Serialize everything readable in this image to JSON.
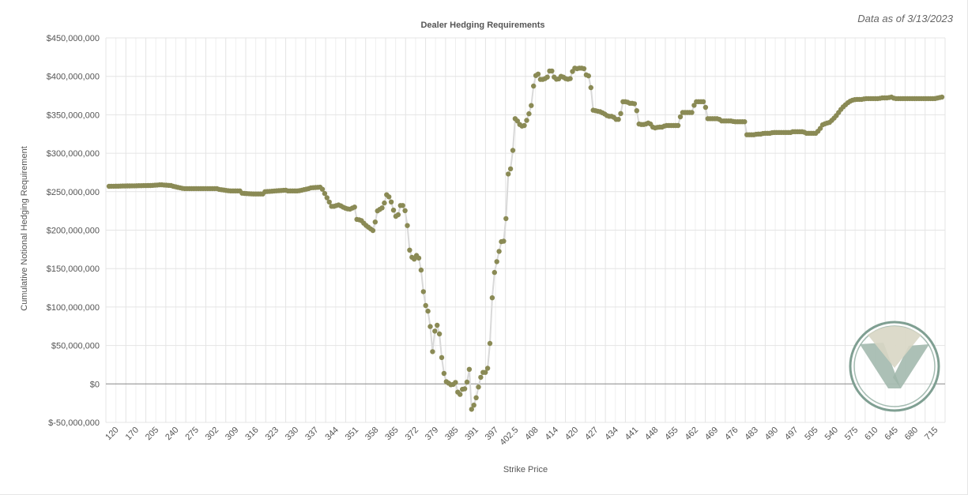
{
  "data_as_of": "Data as of 3/13/2023",
  "colors": {
    "marker": "#8a8a55",
    "line": "#d9d9d9",
    "grid": "#e4e4e4",
    "zero_line": "#888888",
    "logo_outer": "#7f9f92",
    "logo_light": "#d8d6c4",
    "logo_dark": "#9db5a9"
  },
  "logo": {
    "icon": "checkmark-v-logo-icon"
  },
  "chart_data": {
    "type": "line",
    "title": "Dealer Hedging Requirements",
    "xlabel": "Strike Price",
    "ylabel": "Cumulative Notional Hedging Requirement",
    "ylim": [
      -50000000,
      450000000
    ],
    "y_ticks": [
      {
        "value": 450000000,
        "label": "$450,000,000"
      },
      {
        "value": 400000000,
        "label": "$400,000,000"
      },
      {
        "value": 350000000,
        "label": "$350,000,000"
      },
      {
        "value": 300000000,
        "label": "$300,000,000"
      },
      {
        "value": 250000000,
        "label": "$250,000,000"
      },
      {
        "value": 200000000,
        "label": "$200,000,000"
      },
      {
        "value": 150000000,
        "label": "$150,000,000"
      },
      {
        "value": 100000000,
        "label": "$100,000,000"
      },
      {
        "value": 50000000,
        "label": "$50,000,000"
      },
      {
        "value": 0,
        "label": "$0"
      },
      {
        "value": -50000000,
        "label": "$-50,000,000"
      }
    ],
    "x_tick_labels": [
      "120",
      "170",
      "205",
      "240",
      "275",
      "302",
      "309",
      "316",
      "323",
      "330",
      "337",
      "344",
      "351",
      "358",
      "365",
      "372",
      "379",
      "385",
      "391",
      "397",
      "402.5",
      "408",
      "414",
      "420",
      "427",
      "434",
      "441",
      "448",
      "455",
      "462",
      "469",
      "476",
      "483",
      "490",
      "497",
      "505",
      "540",
      "575",
      "610",
      "645",
      "680",
      "715"
    ],
    "grid": true,
    "legend": "none",
    "segments": [
      {
        "count": 18,
        "values": [
          257000000,
          258000000
        ]
      },
      {
        "count": 10,
        "values": [
          258000000,
          259000000,
          258000000
        ]
      },
      {
        "count": 10,
        "values": [
          257000000,
          254000000,
          254000000
        ]
      },
      {
        "count": 10,
        "values": [
          254000000,
          254000000,
          254000000
        ]
      },
      {
        "count": 10,
        "values": [
          253000000,
          251000000,
          251000000
        ]
      },
      {
        "count": 10,
        "values": [
          248000000,
          247000000,
          247000000
        ]
      },
      {
        "count": 10,
        "values": [
          250000000,
          251000000,
          252000000
        ]
      },
      {
        "count": 10,
        "values": [
          251000000,
          251000000,
          254000000
        ]
      },
      {
        "count": 10,
        "values": [
          255000000,
          256000000,
          231000000
        ]
      },
      {
        "count": 10,
        "values": [
          231000000,
          233000000,
          229000000,
          227000000,
          230000000
        ]
      },
      {
        "count": 10,
        "values": [
          214000000,
          213000000,
          207000000,
          203000000,
          199000000,
          225000000
        ]
      },
      {
        "count": 10,
        "values": [
          227000000,
          230000000,
          246000000,
          242000000,
          226000000,
          214000000,
          232000000
        ]
      },
      {
        "count": 10,
        "values": [
          232000000,
          222000000,
          174000000,
          160000000,
          167000000,
          162000000,
          120000000
        ]
      },
      {
        "count": 10,
        "values": [
          102000000,
          91000000,
          42000000,
          82000000,
          65000000,
          19000000,
          3000000
        ]
      },
      {
        "count": 10,
        "values": [
          1000000,
          -2000000,
          2000000,
          -17000000,
          -7000000,
          -6000000,
          19000000
        ]
      },
      {
        "count": 10,
        "values": [
          -33000000,
          -25000000,
          -4000000,
          15000000,
          15000000,
          23000000,
          112000000
        ]
      },
      {
        "count": 10,
        "values": [
          145000000,
          166000000,
          185000000,
          186000000,
          273000000,
          283000000,
          345000000
        ]
      },
      {
        "count": 10,
        "values": [
          342000000,
          335000000,
          336000000,
          346000000,
          362000000,
          400000000,
          403000000
        ]
      },
      {
        "count": 10,
        "values": [
          396000000,
          396000000,
          399000000,
          411000000,
          399000000,
          395000000,
          400000000
        ]
      },
      {
        "count": 10,
        "values": [
          399000000,
          396000000,
          397000000,
          411000000,
          410000000,
          411000000,
          410000000
        ]
      },
      {
        "count": 10,
        "values": [
          402000000,
          400000000,
          356000000,
          355000000,
          354000000,
          352000000,
          349000000
        ]
      },
      {
        "count": 10,
        "values": [
          348000000,
          348000000,
          344000000,
          344000000,
          367000000,
          367000000,
          365000000
        ]
      },
      {
        "count": 10,
        "values": [
          365000000,
          364000000,
          338000000,
          337000000,
          338000000,
          340000000,
          334000000
        ]
      },
      {
        "count": 10,
        "values": [
          333000000,
          334000000,
          334000000,
          336000000,
          336000000,
          336000000,
          336000000
        ]
      },
      {
        "count": 10,
        "values": [
          336000000,
          353000000,
          353000000,
          353000000,
          353000000,
          367000000,
          367000000
        ]
      },
      {
        "count": 10,
        "values": [
          367000000,
          367000000,
          345000000,
          345000000,
          345000000,
          345000000,
          342000000
        ]
      },
      {
        "count": 10,
        "values": [
          342000000,
          342000000,
          342000000,
          341000000,
          341000000,
          341000000,
          341000000
        ]
      },
      {
        "count": 10,
        "values": [
          324000000,
          324000000,
          324000000,
          325000000,
          325000000,
          326000000,
          326000000
        ]
      },
      {
        "count": 10,
        "values": [
          326000000,
          327000000,
          327000000,
          327000000,
          327000000,
          327000000,
          327000000
        ]
      },
      {
        "count": 10,
        "values": [
          328000000,
          328000000,
          328000000,
          328000000,
          326000000,
          326000000,
          326000000
        ]
      },
      {
        "count": 10,
        "values": [
          326000000,
          330000000,
          337000000,
          339000000,
          340000000,
          344000000,
          349000000
        ]
      },
      {
        "count": 10,
        "values": [
          353000000,
          359000000,
          363000000,
          367000000,
          369000000,
          370000000,
          370000000
        ]
      },
      {
        "count": 10,
        "values": [
          370000000,
          371000000,
          371000000,
          371000000,
          371000000,
          371000000,
          372000000
        ]
      },
      {
        "count": 10,
        "values": [
          372000000,
          372000000,
          373000000,
          371000000,
          371000000,
          371000000,
          371000000
        ]
      },
      {
        "count": 10,
        "values": [
          371000000,
          371000000,
          371000000,
          371000000,
          371000000,
          371000000,
          371000000
        ]
      },
      {
        "count": 6,
        "values": [
          371000000,
          371000000,
          372000000,
          373000000
        ]
      }
    ]
  }
}
